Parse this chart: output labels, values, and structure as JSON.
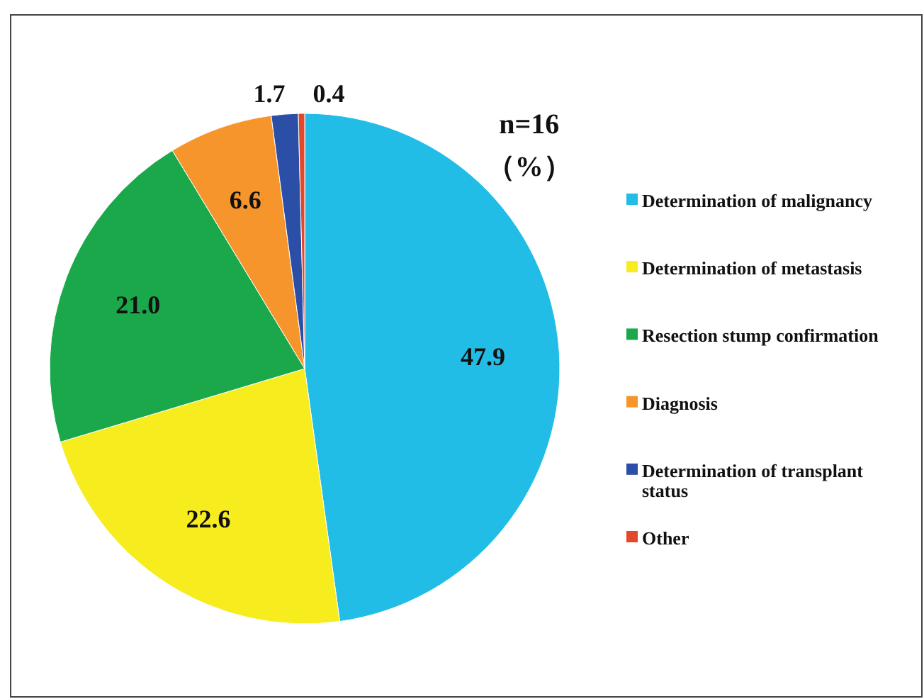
{
  "chart_data": {
    "type": "pie",
    "categories": [
      "Determination of malignancy",
      "Determination of metastasis",
      "Resection stump confirmation",
      "Diagnosis",
      "Determination of transplant status",
      "Other"
    ],
    "values": [
      47.9,
      22.6,
      21.0,
      6.6,
      1.7,
      0.4
    ],
    "value_labels": [
      "47.9",
      "22.6",
      "21.0",
      "6.6",
      "1.7",
      "0.4"
    ],
    "colors": [
      "#22bde6",
      "#f7ec1e",
      "#1aa84b",
      "#f7952d",
      "#2b4ea6",
      "#e2482a"
    ],
    "legend": "right",
    "annotations": [
      "n=16",
      "（%）"
    ]
  }
}
